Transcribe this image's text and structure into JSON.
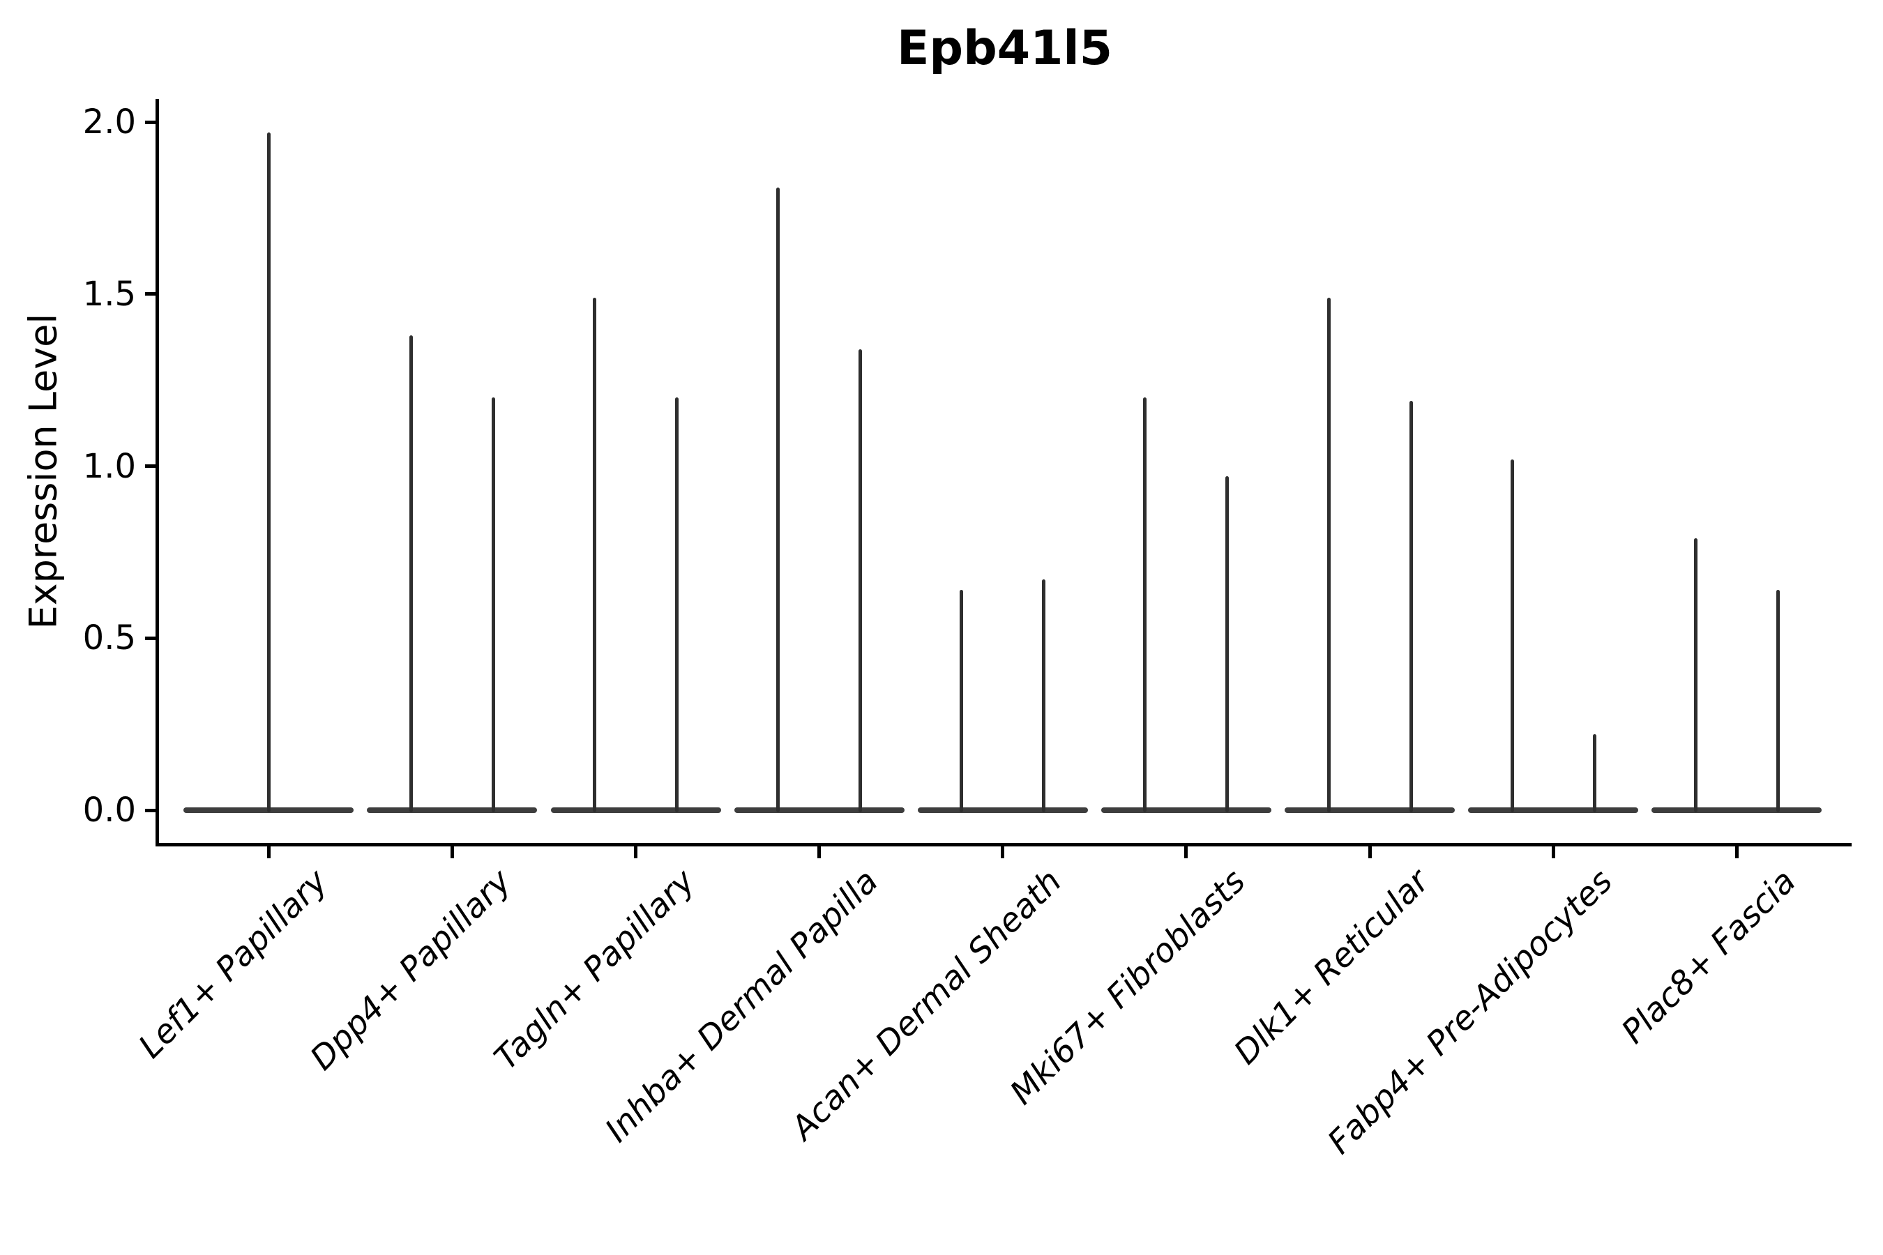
{
  "chart_data": {
    "type": "violin",
    "title": "Epb41l5",
    "xlabel": "",
    "ylabel": "Expression Level",
    "categories": [
      "Lef1+ Papillary",
      "Dpp4+ Papillary",
      "Tagln+ Papillary",
      "Inhba+ Dermal Papilla",
      "Acan+ Dermal Sheath",
      "Mki67+ Fibroblasts",
      "Dlk1+ Reticular",
      "Fabp4+ Pre-Adipocytes",
      "Plac8+ Fascia"
    ],
    "series": [
      {
        "name": "violin-left",
        "max_expression": [
          1.97,
          1.38,
          1.49,
          1.81,
          0.64,
          1.2,
          1.49,
          1.02,
          0.79
        ]
      },
      {
        "name": "violin-right",
        "max_expression": [
          null,
          1.2,
          1.2,
          1.34,
          0.67,
          0.97,
          1.19,
          0.22,
          0.64
        ]
      }
    ],
    "baseline_value": 0.0,
    "shape_note": "Each violin is spike-shaped: a wide flat base at expression 0 and a thin vertical line rising to the maximum expression value; first category has a single full-width violin.",
    "y_ticks": [
      "2.0",
      "1.5",
      "1.0",
      "0.5",
      "0.0"
    ],
    "y_tick_values": [
      2.0,
      1.5,
      1.0,
      0.5,
      0.0
    ],
    "ylim": [
      0.0,
      2.0
    ],
    "grid": false,
    "legend": "none",
    "colors": {
      "violin_line": "#2e2e2e",
      "violin_base": "#3d3d3d",
      "axis": "#000000",
      "text": "#000000",
      "background": "#ffffff"
    }
  }
}
